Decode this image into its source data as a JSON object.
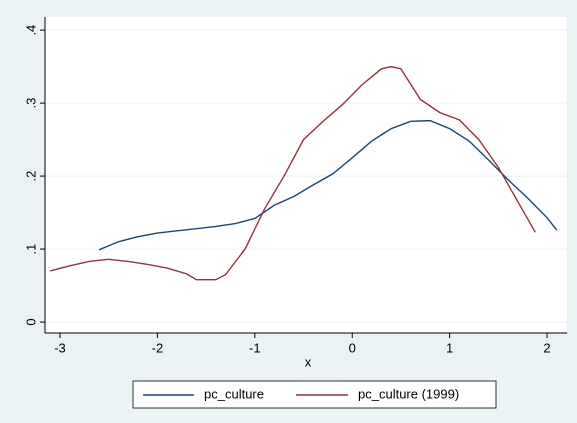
{
  "chart_data": {
    "type": "line",
    "xlabel": "x",
    "xlim": [
      -3.154,
      2.205
    ],
    "xticks": [
      -3,
      -2,
      -1,
      0,
      1,
      2
    ],
    "ylim": [
      -0.015,
      0.418
    ],
    "yticks": [
      0,
      {
        "value": 0.1,
        "label": ".1"
      },
      {
        "value": 0.2,
        "label": ".2"
      },
      {
        "value": 0.3,
        "label": ".3"
      },
      {
        "value": 0.4,
        "label": ".4"
      }
    ],
    "grid": true,
    "legend": "bottom",
    "series": [
      {
        "name": "pc_culture",
        "color": "#1a476f",
        "x": [
          -2.6,
          -2.4,
          -2.2,
          -2.0,
          -1.8,
          -1.6,
          -1.4,
          -1.2,
          -1.0,
          -0.8,
          -0.6,
          -0.4,
          -0.2,
          0,
          0.2,
          0.4,
          0.6,
          0.8,
          1.0,
          1.2,
          1.4,
          1.6,
          1.8,
          2.0,
          2.1
        ],
        "values": [
          0.099,
          0.11,
          0.117,
          0.122,
          0.125,
          0.128,
          0.131,
          0.135,
          0.142,
          0.16,
          0.172,
          0.188,
          0.203,
          0.225,
          0.248,
          0.265,
          0.275,
          0.276,
          0.265,
          0.248,
          0.222,
          0.195,
          0.17,
          0.143,
          0.126
        ]
      },
      {
        "name": "pc_culture (1999)",
        "color": "#90353b",
        "x": [
          -3.1,
          -2.9,
          -2.7,
          -2.5,
          -2.3,
          -2.1,
          -1.9,
          -1.7,
          -1.6,
          -1.4,
          -1.3,
          -1.1,
          -0.9,
          -0.7,
          -0.5,
          -0.3,
          -0.1,
          0.1,
          0.3,
          0.4,
          0.5,
          0.7,
          0.9,
          1.1,
          1.3,
          1.5,
          1.7,
          1.88
        ],
        "values": [
          0.07,
          0.077,
          0.083,
          0.086,
          0.083,
          0.079,
          0.074,
          0.066,
          0.058,
          0.058,
          0.065,
          0.1,
          0.155,
          0.2,
          0.25,
          0.275,
          0.298,
          0.325,
          0.347,
          0.35,
          0.347,
          0.305,
          0.287,
          0.277,
          0.25,
          0.212,
          0.165,
          0.123
        ]
      }
    ]
  }
}
